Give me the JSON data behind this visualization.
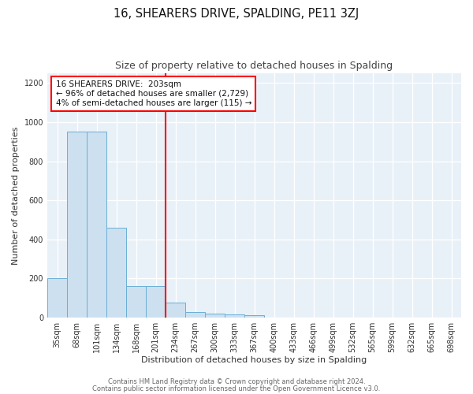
{
  "title": "16, SHEARERS DRIVE, SPALDING, PE11 3ZJ",
  "subtitle": "Size of property relative to detached houses in Spalding",
  "xlabel": "Distribution of detached houses by size in Spalding",
  "ylabel": "Number of detached properties",
  "bar_labels": [
    "35sqm",
    "68sqm",
    "101sqm",
    "134sqm",
    "168sqm",
    "201sqm",
    "234sqm",
    "267sqm",
    "300sqm",
    "333sqm",
    "367sqm",
    "400sqm",
    "433sqm",
    "466sqm",
    "499sqm",
    "532sqm",
    "565sqm",
    "599sqm",
    "632sqm",
    "665sqm",
    "698sqm"
  ],
  "bar_values": [
    200,
    950,
    950,
    460,
    160,
    160,
    75,
    27,
    20,
    15,
    10,
    0,
    0,
    0,
    0,
    0,
    0,
    0,
    0,
    0,
    0
  ],
  "bar_color": "#cce0f0",
  "bar_edge_color": "#6aafd6",
  "red_line_x": 5.5,
  "annotation_lines": [
    "16 SHEARERS DRIVE:  203sqm",
    "← 96% of detached houses are smaller (2,729)",
    "4% of semi-detached houses are larger (115) →"
  ],
  "ylim": [
    0,
    1250
  ],
  "yticks": [
    0,
    200,
    400,
    600,
    800,
    1000,
    1200
  ],
  "footer_line1": "Contains HM Land Registry data © Crown copyright and database right 2024.",
  "footer_line2": "Contains public sector information licensed under the Open Government Licence v3.0.",
  "bg_color": "#ffffff",
  "plot_bg_color": "#e8f0f8",
  "grid_color": "#ffffff",
  "title_fontsize": 10.5,
  "subtitle_fontsize": 9,
  "axis_label_fontsize": 8,
  "tick_fontsize": 7,
  "footer_fontsize": 6,
  "annotation_fontsize": 7.5
}
